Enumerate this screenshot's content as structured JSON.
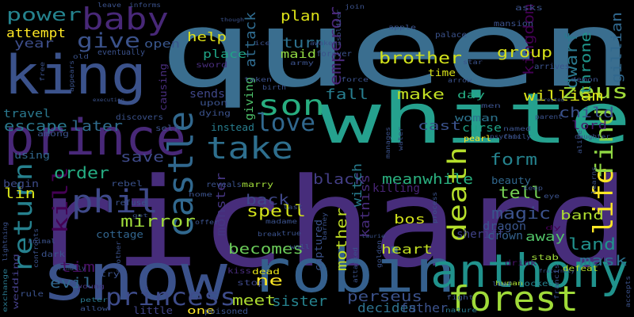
{
  "words": [
    {
      "text": "queen",
      "color": "#3a6e8f"
    },
    {
      "text": "richard",
      "color": "#472d7b"
    },
    {
      "text": "white",
      "color": "#25a18e"
    },
    {
      "text": "snow",
      "color": "#3b528b"
    },
    {
      "text": "robin",
      "color": "#35608d"
    },
    {
      "text": "king",
      "color": "#3b528b"
    },
    {
      "text": "anthony",
      "color": "#20928c"
    },
    {
      "text": "prince",
      "color": "#482878"
    },
    {
      "text": "forest",
      "color": "#a0da39"
    },
    {
      "text": "take",
      "color": "#2e6f8e"
    },
    {
      "text": "son",
      "color": "#28ae80"
    },
    {
      "text": "phil",
      "color": "#3e4989"
    },
    {
      "text": "castle",
      "color": "#31688e"
    },
    {
      "text": "return",
      "color": "#26818e"
    },
    {
      "text": "baby",
      "color": "#482878"
    },
    {
      "text": "princess",
      "color": "#3e4c8a"
    },
    {
      "text": "love",
      "color": "#31688e"
    },
    {
      "text": "death",
      "color": "#b5de2b"
    },
    {
      "text": "life",
      "color": "#fde725"
    },
    {
      "text": "find",
      "color": "#90d743"
    },
    {
      "text": "give",
      "color": "#3b528b"
    },
    {
      "text": "power",
      "color": "#25838e"
    },
    {
      "text": "kill",
      "color": "#440154"
    },
    {
      "text": "zeus",
      "color": "#a0da39"
    },
    {
      "text": "emperor",
      "color": "#482878"
    },
    {
      "text": "mirror",
      "color": "#9fda3a"
    },
    {
      "text": "gillian",
      "color": "#31688e"
    },
    {
      "text": "spell",
      "color": "#d2e21b"
    },
    {
      "text": "brother",
      "color": "#d2e21b"
    },
    {
      "text": "kingdom",
      "color": "#440154"
    },
    {
      "text": "throne",
      "color": "#1f968b"
    },
    {
      "text": "dwarf",
      "color": "#2a788e"
    },
    {
      "text": "william",
      "color": "#d8e219"
    },
    {
      "text": "child",
      "color": "#3b528b"
    },
    {
      "text": "mask",
      "color": "#2c728e"
    },
    {
      "text": "land",
      "color": "#21918c"
    },
    {
      "text": "sister",
      "color": "#26828e"
    },
    {
      "text": "perseus",
      "color": "#3b528b"
    },
    {
      "text": "meet",
      "color": "#addc30"
    },
    {
      "text": "evil",
      "color": "#31688e"
    },
    {
      "text": "tim",
      "color": "#471063"
    },
    {
      "text": "mother",
      "color": "#c0df25"
    },
    {
      "text": "katniss",
      "color": "#472c7a"
    },
    {
      "text": "magic",
      "color": "#3b528b"
    },
    {
      "text": "tell",
      "color": "#75d054"
    },
    {
      "text": "form",
      "color": "#25838e"
    },
    {
      "text": "black",
      "color": "#433e85"
    },
    {
      "text": "meanwhile",
      "color": "#2ab07f"
    },
    {
      "text": "witch",
      "color": "#287c8e"
    },
    {
      "text": "order",
      "color": "#25ac82"
    },
    {
      "text": "save",
      "color": "#3e4a89"
    },
    {
      "text": "lin",
      "color": "#d5e21a"
    },
    {
      "text": "escape",
      "color": "#2a788e"
    },
    {
      "text": "later",
      "color": "#2f6c8e"
    },
    {
      "text": "make",
      "color": "#c2df23"
    },
    {
      "text": "fall",
      "color": "#287d8e"
    },
    {
      "text": "turn",
      "color": "#2d708e"
    },
    {
      "text": "plan",
      "color": "#dde318"
    },
    {
      "text": "attack",
      "color": "#2f6b8e"
    },
    {
      "text": "help",
      "color": "#e2e418"
    },
    {
      "text": "group",
      "color": "#d8e219"
    },
    {
      "text": "sends",
      "color": "#3f4788"
    },
    {
      "text": "giving",
      "color": "#4ec36b"
    },
    {
      "text": "back",
      "color": "#3f4788"
    },
    {
      "text": "becomes",
      "color": "#6ccd5a"
    },
    {
      "text": "heart",
      "color": "#c2df23"
    },
    {
      "text": "monster",
      "color": "#453581"
    },
    {
      "text": "bos",
      "color": "#d2e21b"
    },
    {
      "text": "band",
      "color": "#addc30"
    },
    {
      "text": "dragon",
      "color": "#39558c"
    },
    {
      "text": "sheriff",
      "color": "#404387"
    },
    {
      "text": "crown",
      "color": "#34618d"
    },
    {
      "text": "away",
      "color": "#52c569"
    },
    {
      "text": "killing",
      "color": "#482576"
    },
    {
      "text": "ne",
      "color": "#fde725"
    },
    {
      "text": "decides",
      "color": "#2d718e"
    },
    {
      "text": "father",
      "color": "#3b528b"
    },
    {
      "text": "year",
      "color": "#3d4e8a"
    },
    {
      "text": "attempt",
      "color": "#fde725"
    },
    {
      "text": "open",
      "color": "#39568c"
    },
    {
      "text": "place",
      "color": "#20a486"
    },
    {
      "text": "maid",
      "color": "#90d743"
    },
    {
      "text": "day",
      "color": "#25ab82"
    },
    {
      "text": "woman",
      "color": "#2c738e"
    },
    {
      "text": "cast",
      "color": "#3b528b"
    },
    {
      "text": "curse",
      "color": "#1fa287"
    },
    {
      "text": "lord",
      "color": "#481a6c"
    },
    {
      "text": "causing",
      "color": "#472d7b"
    },
    {
      "text": "using",
      "color": "#31688e"
    },
    {
      "text": "cottage",
      "color": "#32658e"
    },
    {
      "text": "travel",
      "color": "#2a788e"
    },
    {
      "text": "instead",
      "color": "#287d8e"
    },
    {
      "text": "little",
      "color": "#414487"
    },
    {
      "text": "begin",
      "color": "#3e4c8a"
    },
    {
      "text": "captured",
      "color": "#3b528b"
    },
    {
      "text": "time",
      "color": "#d8e219"
    },
    {
      "text": "marry",
      "color": "#9fda3a"
    },
    {
      "text": "kiss",
      "color": "#472c7a"
    },
    {
      "text": "stop",
      "color": "#3e4989"
    },
    {
      "text": "dead",
      "color": "#e5e419"
    },
    {
      "text": "one",
      "color": "#fde725"
    },
    {
      "text": "poisoned",
      "color": "#3b528b"
    },
    {
      "text": "beauty",
      "color": "#31688e"
    },
    {
      "text": "wedding",
      "color": "#433e85"
    },
    {
      "text": "rule",
      "color": "#3b528b"
    },
    {
      "text": "young",
      "color": "#46337e"
    },
    {
      "text": "peter",
      "color": "#2a788e"
    },
    {
      "text": "allow",
      "color": "#3b528b"
    },
    {
      "text": "exchange",
      "color": "#2a788e"
    },
    {
      "text": "fight",
      "color": "#3b528b"
    },
    {
      "text": "nature",
      "color": "#2a788e"
    },
    {
      "text": "francis",
      "color": "#3b528b"
    },
    {
      "text": "human",
      "color": "#addc30"
    },
    {
      "text": "leaf",
      "color": "#3b528b"
    },
    {
      "text": "locked",
      "color": "#26828e"
    },
    {
      "text": "drink",
      "color": "#471164"
    },
    {
      "text": "stab",
      "color": "#9fda3a"
    },
    {
      "text": "dy",
      "color": "#440154"
    },
    {
      "text": "defeat",
      "color": "#b5de2b"
    },
    {
      "text": "fraternity",
      "color": "#3b528b"
    },
    {
      "text": "accepts",
      "color": "#3b528b"
    },
    {
      "text": "free",
      "color": "#3b528b"
    },
    {
      "text": "sword",
      "color": "#472d7b"
    },
    {
      "text": "army",
      "color": "#3b528b"
    },
    {
      "text": "awakens",
      "color": "#3b528b"
    },
    {
      "text": "soldier",
      "color": "#3b528b"
    },
    {
      "text": "apple",
      "color": "#3b528b"
    },
    {
      "text": "palace",
      "color": "#3b528b"
    },
    {
      "text": "forever",
      "color": "#3b528b"
    },
    {
      "text": "force",
      "color": "#3b528b"
    },
    {
      "text": "arrives",
      "color": "#3b528b"
    },
    {
      "text": "mansion",
      "color": "#3b528b"
    },
    {
      "text": "asks",
      "color": "#3b528b"
    },
    {
      "text": "demon",
      "color": "#3b528b"
    },
    {
      "text": "parent",
      "color": "#3b528b"
    },
    {
      "text": "named",
      "color": "#3b528b"
    },
    {
      "text": "family",
      "color": "#3b528b"
    },
    {
      "text": "daughter",
      "color": "#3b528b"
    },
    {
      "text": "psychic",
      "color": "#3b528b"
    },
    {
      "text": "pearl",
      "color": "#fde725"
    },
    {
      "text": "arrested",
      "color": "#3b528b"
    },
    {
      "text": "men",
      "color": "#3b528b"
    },
    {
      "text": "discovers",
      "color": "#3b528b"
    },
    {
      "text": "self",
      "color": "#3b528b"
    },
    {
      "text": "dying",
      "color": "#3b528b"
    },
    {
      "text": "upon",
      "color": "#3b528b"
    },
    {
      "text": "among",
      "color": "#3b528b"
    },
    {
      "text": "eventually",
      "color": "#3b528b"
    },
    {
      "text": "leave",
      "color": "#3b528b"
    },
    {
      "text": "informs",
      "color": "#3b528b"
    },
    {
      "text": "join",
      "color": "#3b528b"
    },
    {
      "text": "ice",
      "color": "#3b528b"
    },
    {
      "text": "though",
      "color": "#3b528b"
    },
    {
      "text": "taken",
      "color": "#3b528b"
    },
    {
      "text": "birth",
      "color": "#3b528b"
    },
    {
      "text": "rebel",
      "color": "#3b528b"
    },
    {
      "text": "refuse",
      "color": "#3b528b"
    },
    {
      "text": "home",
      "color": "#3b528b"
    },
    {
      "text": "reveals",
      "color": "#3b528b"
    },
    {
      "text": "last",
      "color": "#3b528b"
    },
    {
      "text": "madame",
      "color": "#3b528b"
    },
    {
      "text": "true",
      "color": "#3b528b"
    },
    {
      "text": "break",
      "color": "#3b528b"
    },
    {
      "text": "barney",
      "color": "#3b528b"
    },
    {
      "text": "process",
      "color": "#3b528b"
    },
    {
      "text": "keep",
      "color": "#3b528b"
    },
    {
      "text": "learns",
      "color": "#3b528b"
    },
    {
      "text": "alive",
      "color": "#3b528b"
    },
    {
      "text": "wall",
      "color": "#3b528b"
    },
    {
      "text": "golden",
      "color": "#3b528b"
    },
    {
      "text": "attacked",
      "color": "#3b528b"
    },
    {
      "text": "laurie",
      "color": "#3b528b"
    },
    {
      "text": "another",
      "color": "#3b528b"
    },
    {
      "text": "try",
      "color": "#3b528b"
    },
    {
      "text": "confronts",
      "color": "#3b528b"
    },
    {
      "text": "finally",
      "color": "#3b528b"
    },
    {
      "text": "dark",
      "color": "#3b528b"
    },
    {
      "text": "animal",
      "color": "#3b528b"
    },
    {
      "text": "lightning",
      "color": "#3b528b"
    },
    {
      "text": "execution",
      "color": "#3b528b"
    },
    {
      "text": "appears",
      "color": "#3b528b"
    },
    {
      "text": "old",
      "color": "#3b528b"
    },
    {
      "text": "offer",
      "color": "#3b528b"
    },
    {
      "text": "get",
      "color": "#3b528b"
    },
    {
      "text": "manages",
      "color": "#3b528b"
    },
    {
      "text": "water",
      "color": "#3b528b"
    },
    {
      "text": "star",
      "color": "#3b528b"
    },
    {
      "text": "arrow",
      "color": "#3b528b"
    },
    {
      "text": "eye",
      "color": "#3b528b"
    }
  ]
}
